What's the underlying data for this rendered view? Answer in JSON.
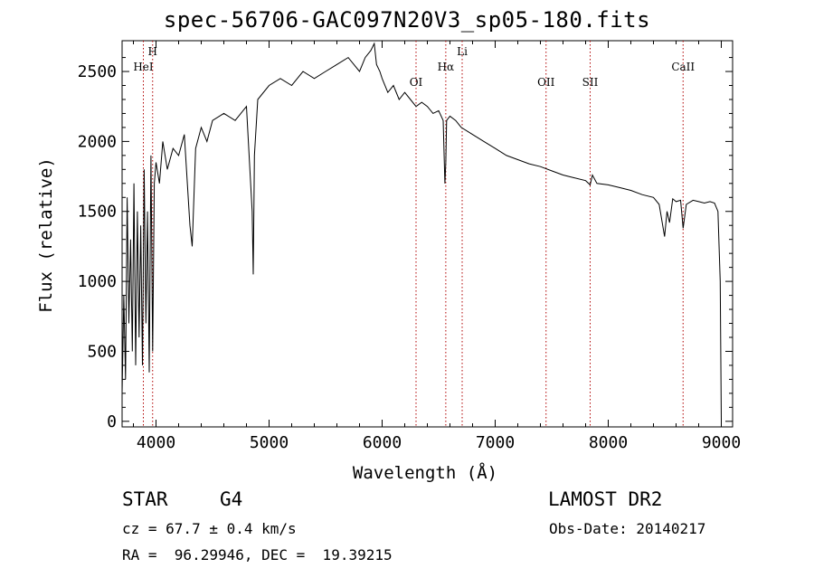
{
  "chart_data": {
    "type": "line",
    "title": "spec-56706-GAC097N20V3_sp05-180.fits",
    "xlabel": "Wavelength (Å)",
    "ylabel": "Flux (relative)",
    "xlim": [
      3700,
      9100
    ],
    "ylim": [
      -40,
      2720
    ],
    "x_ticks": [
      4000,
      5000,
      6000,
      7000,
      8000,
      9000
    ],
    "y_ticks": [
      0,
      500,
      1000,
      1500,
      2000,
      2500
    ],
    "grid": false,
    "spectrum": {
      "x": [
        3700,
        3715,
        3730,
        3745,
        3760,
        3775,
        3790,
        3805,
        3820,
        3835,
        3850,
        3865,
        3880,
        3895,
        3910,
        3925,
        3940,
        3955,
        3970,
        3985,
        4000,
        4030,
        4060,
        4100,
        4150,
        4200,
        4250,
        4300,
        4320,
        4350,
        4400,
        4450,
        4500,
        4600,
        4700,
        4800,
        4850,
        4860,
        4870,
        4900,
        5000,
        5100,
        5200,
        5300,
        5400,
        5500,
        5600,
        5700,
        5800,
        5850,
        5900,
        5930,
        5950,
        5980,
        6000,
        6050,
        6100,
        6150,
        6200,
        6250,
        6300,
        6350,
        6400,
        6450,
        6500,
        6540,
        6555,
        6563,
        6570,
        6600,
        6650,
        6700,
        6800,
        6900,
        7000,
        7100,
        7200,
        7300,
        7400,
        7500,
        7600,
        7700,
        7800,
        7840,
        7860,
        7900,
        8000,
        8100,
        8200,
        8300,
        8400,
        8450,
        8498,
        8520,
        8542,
        8570,
        8600,
        8640,
        8662,
        8690,
        8750,
        8800,
        8850,
        8900,
        8940,
        8970,
        8990,
        9000
      ],
      "flux": [
        200,
        900,
        300,
        1600,
        700,
        1300,
        500,
        1700,
        400,
        1500,
        600,
        1400,
        400,
        1800,
        700,
        1500,
        350,
        1900,
        500,
        1700,
        1850,
        1700,
        2000,
        1800,
        1950,
        1900,
        2050,
        1400,
        1250,
        1950,
        2100,
        2000,
        2150,
        2200,
        2150,
        2250,
        1500,
        1050,
        1900,
        2300,
        2400,
        2450,
        2400,
        2500,
        2450,
        2500,
        2550,
        2600,
        2500,
        2600,
        2650,
        2700,
        2550,
        2500,
        2450,
        2350,
        2400,
        2300,
        2350,
        2300,
        2250,
        2280,
        2250,
        2200,
        2220,
        2150,
        1700,
        1850,
        2150,
        2180,
        2150,
        2100,
        2050,
        2000,
        1950,
        1900,
        1870,
        1840,
        1820,
        1790,
        1760,
        1740,
        1720,
        1690,
        1760,
        1700,
        1690,
        1670,
        1650,
        1620,
        1600,
        1550,
        1320,
        1500,
        1420,
        1590,
        1570,
        1580,
        1380,
        1550,
        1580,
        1570,
        1560,
        1570,
        1560,
        1500,
        1000,
        0
      ]
    },
    "lines": [
      {
        "label": "HeI",
        "x": 3888
      },
      {
        "label": "H",
        "x": 3970
      },
      {
        "label": "OI",
        "x": 6300
      },
      {
        "label": "Hα",
        "x": 6563
      },
      {
        "label": "Li",
        "x": 6708
      },
      {
        "label": "OII",
        "x": 7450
      },
      {
        "label": "SII",
        "x": 7840
      },
      {
        "label": "CaII",
        "x": 8662
      }
    ]
  },
  "info": {
    "object_class": "STAR",
    "subclass": "G4",
    "survey": "LAMOST DR2",
    "velocity": "cz = 67.7 ± 0.4 km/s",
    "obs_date": "Obs-Date: 20140217",
    "coords": "RA =  96.29946, DEC =  19.39215"
  }
}
